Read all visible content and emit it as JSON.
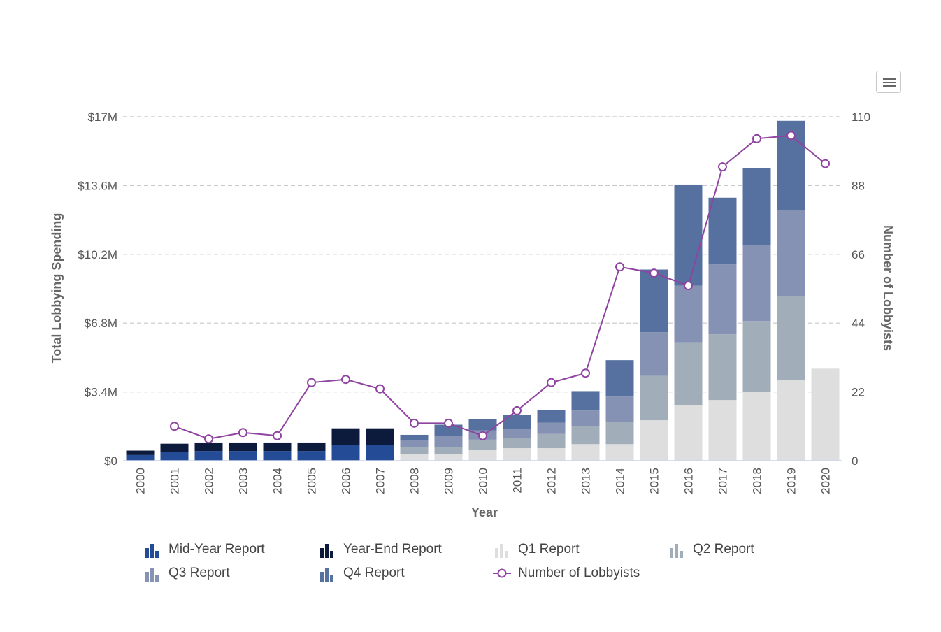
{
  "chart_data": {
    "type": "bar",
    "stacked": true,
    "categories": [
      "2000",
      "2001",
      "2002",
      "2003",
      "2004",
      "2005",
      "2006",
      "2007",
      "2008",
      "2009",
      "2010",
      "2011",
      "2012",
      "2013",
      "2014",
      "2015",
      "2016",
      "2017",
      "2018",
      "2019",
      "2020"
    ],
    "xlabel": "Year",
    "ylabel": "Total Lobbying Spending",
    "y2label": "Number of Lobbyists",
    "ylim": [
      0,
      17000000
    ],
    "y2lim": [
      0,
      110
    ],
    "yticks": [
      "$0",
      "$3.4M",
      "$6.8M",
      "$10.2M",
      "$13.6M",
      "$17M"
    ],
    "y2ticks": [
      "0",
      "22",
      "44",
      "66",
      "88",
      "110"
    ],
    "grid": true,
    "legend_position": "bottom",
    "series": [
      {
        "name": "Q1 Report",
        "color": "#dedede",
        "values": [
          0,
          0,
          0,
          0,
          0,
          0,
          0,
          0,
          340000,
          340000,
          540000,
          620000,
          620000,
          820000,
          820000,
          2000000,
          2750000,
          3000000,
          3400000,
          4000000,
          4550000
        ]
      },
      {
        "name": "Q2 Report",
        "color": "#a2adba",
        "values": [
          0,
          0,
          0,
          0,
          0,
          0,
          0,
          0,
          340000,
          340000,
          500000,
          500000,
          700000,
          900000,
          1100000,
          2200000,
          3100000,
          3250000,
          3500000,
          4150000,
          0
        ]
      },
      {
        "name": "Q3 Report",
        "color": "#8692b4",
        "values": [
          0,
          0,
          0,
          0,
          0,
          0,
          0,
          0,
          340000,
          540000,
          460000,
          440000,
          560000,
          760000,
          1250000,
          2150000,
          2800000,
          3450000,
          3750000,
          4250000,
          0
        ]
      },
      {
        "name": "Q4 Report",
        "color": "#56719f",
        "values": [
          0,
          0,
          0,
          0,
          0,
          0,
          0,
          0,
          260000,
          560000,
          560000,
          700000,
          620000,
          960000,
          1800000,
          3100000,
          5000000,
          3300000,
          3800000,
          4400000,
          0
        ]
      },
      {
        "name": "Mid-Year Report",
        "color": "#244c96",
        "values": [
          280000,
          420000,
          480000,
          480000,
          480000,
          480000,
          760000,
          760000,
          0,
          0,
          0,
          0,
          0,
          0,
          0,
          0,
          0,
          0,
          0,
          0,
          0
        ]
      },
      {
        "name": "Year-End Report",
        "color": "#0c1a3b",
        "values": [
          220000,
          420000,
          420000,
          420000,
          420000,
          420000,
          840000,
          840000,
          0,
          0,
          0,
          0,
          0,
          0,
          0,
          0,
          0,
          0,
          0,
          0,
          0
        ]
      }
    ],
    "line_series": {
      "name": "Number of Lobbyists",
      "color": "#8e44a0",
      "axis": "right",
      "values": [
        null,
        11,
        7,
        9,
        8,
        25,
        26,
        23,
        12,
        12,
        8,
        16,
        25,
        28,
        62,
        60,
        56,
        94,
        103,
        104,
        95
      ]
    }
  },
  "legend": {
    "items": [
      {
        "label": "Mid-Year Report",
        "color": "#244c96",
        "kind": "bar"
      },
      {
        "label": "Year-End Report",
        "color": "#0c1a3b",
        "kind": "bar"
      },
      {
        "label": "Q1 Report",
        "color": "#dedede",
        "kind": "bar"
      },
      {
        "label": "Q2 Report",
        "color": "#a2adba",
        "kind": "bar"
      },
      {
        "label": "Q3 Report",
        "color": "#8692b4",
        "kind": "bar"
      },
      {
        "label": "Q4 Report",
        "color": "#56719f",
        "kind": "bar"
      },
      {
        "label": "Number of Lobbyists",
        "color": "#8e44a0",
        "kind": "line"
      }
    ]
  },
  "menu": {
    "icon": "hamburger-menu-icon"
  }
}
